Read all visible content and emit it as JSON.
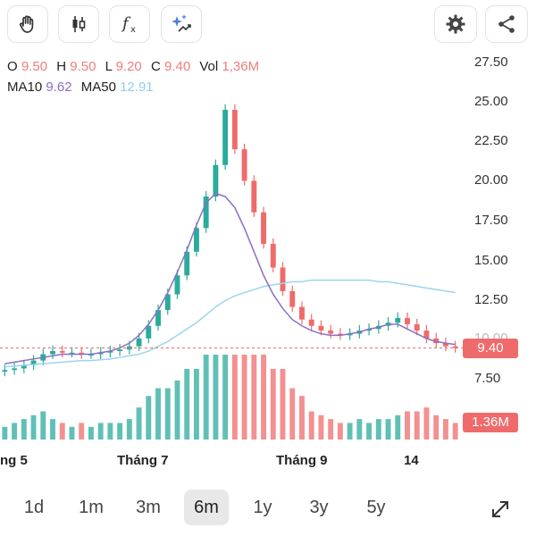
{
  "toolbar": {
    "left_buttons": [
      {
        "icon": "hand-icon"
      },
      {
        "icon": "candlestick-icon"
      },
      {
        "icon": "function-icon"
      },
      {
        "icon": "ai-sparkle-icon"
      }
    ],
    "right_buttons": [
      {
        "icon": "gear-icon"
      },
      {
        "icon": "share-icon"
      }
    ]
  },
  "ohlc": {
    "o_label": "O",
    "o": "9.50",
    "h_label": "H",
    "h": "9.50",
    "l_label": "L",
    "l": "9.20",
    "c_label": "C",
    "c": "9.40",
    "vol_label": "Vol",
    "vol": "1,36M"
  },
  "ma": {
    "ma10_label": "MA10",
    "ma10": "9.62",
    "ma50_label": "MA50",
    "ma50": "12.91"
  },
  "price_tag": "9.40",
  "volume_tag": "1.36M",
  "ranges": [
    {
      "label": "1d",
      "selected": false
    },
    {
      "label": "1m",
      "selected": false
    },
    {
      "label": "3m",
      "selected": false
    },
    {
      "label": "6m",
      "selected": true
    },
    {
      "label": "1y",
      "selected": false
    },
    {
      "label": "3y",
      "selected": false
    },
    {
      "label": "5y",
      "selected": false
    }
  ],
  "colors": {
    "up": "#2bab9c",
    "down": "#ef6b6b",
    "ma10": "#8a6fc4",
    "ma50": "#9ad6ee"
  },
  "chart_data": {
    "type": "candlestick",
    "y_ticks": [
      "27.50",
      "25.00",
      "22.50",
      "20.00",
      "17.50",
      "15.00",
      "12.50",
      "10.00",
      "7.50"
    ],
    "ylim": [
      7.5,
      27.5
    ],
    "x_labels": [
      "ng 5",
      "Tháng 7",
      "Tháng 9",
      "14"
    ],
    "last_price": 9.4,
    "close_series": [
      8.0,
      8.1,
      8.3,
      8.6,
      9.0,
      9.2,
      9.1,
      9.1,
      9.0,
      9.0,
      9.1,
      9.2,
      9.3,
      9.5,
      10.0,
      10.8,
      11.8,
      12.8,
      14.0,
      15.5,
      17.0,
      19.0,
      21.0,
      24.5,
      22.0,
      20.0,
      18.0,
      16.0,
      14.5,
      13.0,
      12.0,
      11.2,
      10.8,
      10.5,
      10.3,
      10.2,
      10.3,
      10.5,
      10.6,
      10.8,
      11.0,
      11.3,
      10.9,
      10.5,
      10.0,
      9.7,
      9.5,
      9.4
    ],
    "ma10_series": [
      8.4,
      8.5,
      8.6,
      8.7,
      8.8,
      8.9,
      9.0,
      9.0,
      9.0,
      9.0,
      9.1,
      9.2,
      9.4,
      9.7,
      10.2,
      10.9,
      11.8,
      12.9,
      14.2,
      15.6,
      17.2,
      18.6,
      19.2,
      19.0,
      18.3,
      17.0,
      15.5,
      14.0,
      12.8,
      11.9,
      11.2,
      10.8,
      10.5,
      10.3,
      10.2,
      10.2,
      10.3,
      10.4,
      10.6,
      10.7,
      10.9,
      10.9,
      10.6,
      10.3,
      10.0,
      9.8,
      9.7,
      9.62
    ],
    "ma50_series": [
      8.2,
      8.25,
      8.3,
      8.35,
      8.4,
      8.45,
      8.5,
      8.55,
      8.6,
      8.6,
      8.65,
      8.7,
      8.8,
      8.9,
      9.0,
      9.2,
      9.5,
      9.8,
      10.2,
      10.6,
      11.0,
      11.5,
      12.0,
      12.4,
      12.7,
      12.9,
      13.1,
      13.3,
      13.4,
      13.5,
      13.6,
      13.6,
      13.7,
      13.7,
      13.7,
      13.7,
      13.7,
      13.7,
      13.7,
      13.6,
      13.6,
      13.5,
      13.4,
      13.3,
      13.2,
      13.1,
      13.0,
      12.91
    ]
  }
}
